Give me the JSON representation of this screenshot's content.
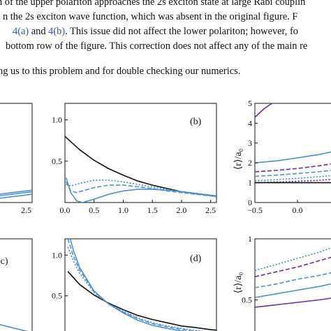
{
  "text": {
    "line1": "n of the upper polariton approaches the 2s exciton state at large Rabi couplin",
    "line2": "n the 2s exciton wave function, which was absent in the original figure. F",
    "line3_ref_a": "4(a)",
    "line3_and": " and ",
    "line3_ref_b": "4(b)",
    "line3_rest": ". This issue did not affect the lower polariton; however, fo",
    "line4": "bottom row of the figure. This correction does not affect any of the main re",
    "line5": "ng us to this problem and for double checking our numerics."
  },
  "chart_data": [
    {
      "id": "panel-a-fragment",
      "type": "line",
      "title": "",
      "xticks": [
        "2.5"
      ],
      "ylim": [
        0,
        1.2
      ],
      "series": [
        {
          "values": [
            0.05,
            0.1
          ]
        },
        {
          "values": [
            0.08,
            0.13
          ]
        },
        {
          "values": [
            0.1,
            0.15
          ]
        }
      ]
    },
    {
      "id": "panel-b",
      "type": "line",
      "title": "(b)",
      "xlim": [
        0,
        2.6
      ],
      "ylim": [
        0,
        1.2
      ],
      "xticks": [
        "0.0",
        "0.5",
        "1.0",
        "1.5",
        "2.0",
        "2.5"
      ],
      "yticks": [
        "0.5",
        "1.0"
      ],
      "series": [
        {
          "color": "#111111",
          "style": "solid",
          "x": [
            0,
            0.25,
            0.5,
            0.75,
            1.0,
            1.25,
            1.5,
            1.75,
            2.0,
            2.25,
            2.5,
            2.6
          ],
          "y": [
            0.8,
            0.64,
            0.51,
            0.41,
            0.33,
            0.26,
            0.21,
            0.17,
            0.13,
            0.11,
            0.085,
            0.08
          ]
        },
        {
          "color": "#4a8fd8",
          "style": "solid",
          "x": [
            0.02,
            0.1,
            0.2,
            0.3,
            0.5,
            0.75,
            1.0,
            1.25,
            1.5,
            1.75,
            2.0,
            2.25,
            2.5,
            2.6
          ],
          "y": [
            0.3,
            0.12,
            0.02,
            0.0,
            0.04,
            0.1,
            0.14,
            0.16,
            0.16,
            0.15,
            0.13,
            0.11,
            0.09,
            0.08
          ]
        },
        {
          "color": "#4a8fd8",
          "style": "dashed",
          "x": [
            0.02,
            0.1,
            0.2,
            0.3,
            0.5,
            0.75,
            1.0,
            1.25,
            1.5,
            1.75,
            2.0,
            2.25,
            2.5,
            2.6
          ],
          "y": [
            0.25,
            0.14,
            0.12,
            0.14,
            0.18,
            0.21,
            0.21,
            0.19,
            0.17,
            0.14,
            0.12,
            0.1,
            0.08,
            0.07
          ]
        },
        {
          "color": "#4a8fd8",
          "style": "dotted",
          "x": [
            0.02,
            0.1,
            0.2,
            0.3,
            0.5,
            0.75,
            1.0,
            1.25,
            1.5,
            1.75,
            2.0,
            2.25,
            2.5,
            2.6
          ],
          "y": [
            0.22,
            0.2,
            0.22,
            0.24,
            0.27,
            0.27,
            0.25,
            0.22,
            0.19,
            0.16,
            0.13,
            0.1,
            0.08,
            0.07
          ]
        }
      ]
    },
    {
      "id": "panel-right-top",
      "type": "line",
      "title": "",
      "ylabel": "⟨r⟩/a₀",
      "xlim": [
        -0.5,
        0.45
      ],
      "ylim": [
        0,
        5
      ],
      "xticks": [
        "−0.5",
        "0.0"
      ],
      "yticks": [
        "0",
        "1",
        "2",
        "3",
        "4",
        "5"
      ],
      "series": [
        {
          "color": "#6a2aa8",
          "style": "solid",
          "x": [
            -0.5,
            -0.4,
            -0.3
          ],
          "y": [
            4.3,
            4.7,
            5.0
          ]
        },
        {
          "color": "#4a8fd8",
          "style": "solid",
          "x": [
            -0.5,
            -0.25,
            0.0,
            0.25,
            0.45
          ],
          "y": [
            2.0,
            2.1,
            2.25,
            2.42,
            2.6
          ]
        },
        {
          "color": "#6a2aa8",
          "style": "dashed",
          "x": [
            -0.5,
            -0.25,
            0.0,
            0.25,
            0.45
          ],
          "y": [
            1.55,
            1.62,
            1.72,
            1.85,
            1.98
          ]
        },
        {
          "color": "#4a8fd8",
          "style": "dashed",
          "x": [
            -0.5,
            -0.25,
            0.0,
            0.25,
            0.45
          ],
          "y": [
            1.32,
            1.38,
            1.46,
            1.55,
            1.65
          ]
        },
        {
          "color": "#4a8fd8",
          "style": "dotted",
          "x": [
            -0.5,
            -0.25,
            0.0,
            0.25,
            0.45
          ],
          "y": [
            1.1,
            1.15,
            1.22,
            1.3,
            1.38
          ]
        },
        {
          "color": "#6a2aa8",
          "style": "dotted",
          "x": [
            -0.5,
            -0.25,
            0.0,
            0.25,
            0.45
          ],
          "y": [
            1.0,
            1.03,
            1.07,
            1.12,
            1.18
          ]
        },
        {
          "color": "#111111",
          "style": "solid",
          "x": [
            -0.5,
            0.45
          ],
          "y": [
            1.0,
            1.0
          ]
        }
      ]
    },
    {
      "id": "panel-c-fragment",
      "type": "line",
      "title": "(c)",
      "ylim": [
        0,
        1.2
      ],
      "series": [
        {
          "color": "#4a8fd8",
          "style": "solid",
          "values": [
            0.15,
            0.05
          ]
        }
      ]
    },
    {
      "id": "panel-d",
      "type": "line",
      "title": "(d)",
      "xlim": [
        0,
        2.6
      ],
      "ylim": [
        0,
        1.2
      ],
      "yticks": [
        "0.5",
        "1.0"
      ],
      "series": [
        {
          "color": "#111111",
          "style": "solid",
          "x": [
            0.05,
            0.25,
            0.5,
            0.75,
            1.0,
            1.25,
            1.5,
            1.75,
            2.0,
            2.25,
            2.5,
            2.6
          ],
          "y": [
            0.8,
            0.64,
            0.51,
            0.41,
            0.33,
            0.26,
            0.21,
            0.17,
            0.13,
            0.11,
            0.085,
            0.08
          ]
        },
        {
          "color": "#4a8fd8",
          "style": "solid",
          "x": [
            0.05,
            0.15,
            0.25,
            0.5,
            0.75,
            1.0,
            1.25,
            1.5,
            1.75,
            2.0,
            2.25,
            2.5,
            2.6
          ],
          "y": [
            1.3,
            1.05,
            0.85,
            0.56,
            0.4,
            0.29,
            0.2,
            0.14,
            0.1,
            0.07,
            0.05,
            0.035,
            0.03
          ]
        },
        {
          "color": "#4a8fd8",
          "style": "dashed",
          "x": [
            0.05,
            0.15,
            0.25,
            0.5,
            0.75,
            1.0,
            1.25,
            1.5,
            1.75,
            2.0,
            2.25,
            2.5,
            2.6
          ],
          "y": [
            1.2,
            0.98,
            0.82,
            0.55,
            0.4,
            0.3,
            0.22,
            0.16,
            0.12,
            0.09,
            0.065,
            0.05,
            0.045
          ]
        },
        {
          "color": "#4a8fd8",
          "style": "dotted",
          "x": [
            0.05,
            0.15,
            0.25,
            0.5,
            0.75,
            1.0,
            1.25,
            1.5,
            1.75,
            2.0,
            2.25,
            2.5,
            2.6
          ],
          "y": [
            1.1,
            0.92,
            0.78,
            0.54,
            0.4,
            0.31,
            0.23,
            0.17,
            0.13,
            0.1,
            0.075,
            0.06,
            0.05
          ]
        }
      ]
    },
    {
      "id": "panel-right-bottom",
      "type": "line",
      "title": "",
      "ylabel": "⟨r⟩/a₀",
      "xlim": [
        -0.5,
        0.45
      ],
      "ylim": [
        0.2,
        1.0
      ],
      "yticks": [
        "0.5",
        "1"
      ],
      "series": [
        {
          "color": "#4a8fd8",
          "style": "dotted",
          "x": [
            -0.5,
            -0.25,
            0.0,
            0.25,
            0.45
          ],
          "y": [
            0.74,
            0.79,
            0.84,
            0.89,
            0.94
          ]
        },
        {
          "color": "#6a2aa8",
          "style": "dashed",
          "x": [
            -0.5,
            -0.25,
            0.0,
            0.25,
            0.45
          ],
          "y": [
            0.69,
            0.73,
            0.77,
            0.82,
            0.86
          ]
        },
        {
          "color": "#4a8fd8",
          "style": "dashed",
          "x": [
            -0.5,
            -0.25,
            0.0,
            0.25,
            0.45
          ],
          "y": [
            0.6,
            0.63,
            0.67,
            0.7,
            0.73
          ]
        },
        {
          "color": "#4a8fd8",
          "style": "solid",
          "x": [
            -0.5,
            -0.25,
            0.0,
            0.25,
            0.45
          ],
          "y": [
            0.52,
            0.55,
            0.58,
            0.61,
            0.64
          ]
        },
        {
          "color": "#6a2aa8",
          "style": "solid",
          "x": [
            -0.5,
            -0.25,
            0.0,
            0.25,
            0.45
          ],
          "y": [
            0.44,
            0.46,
            0.48,
            0.5,
            0.52
          ]
        }
      ]
    }
  ]
}
